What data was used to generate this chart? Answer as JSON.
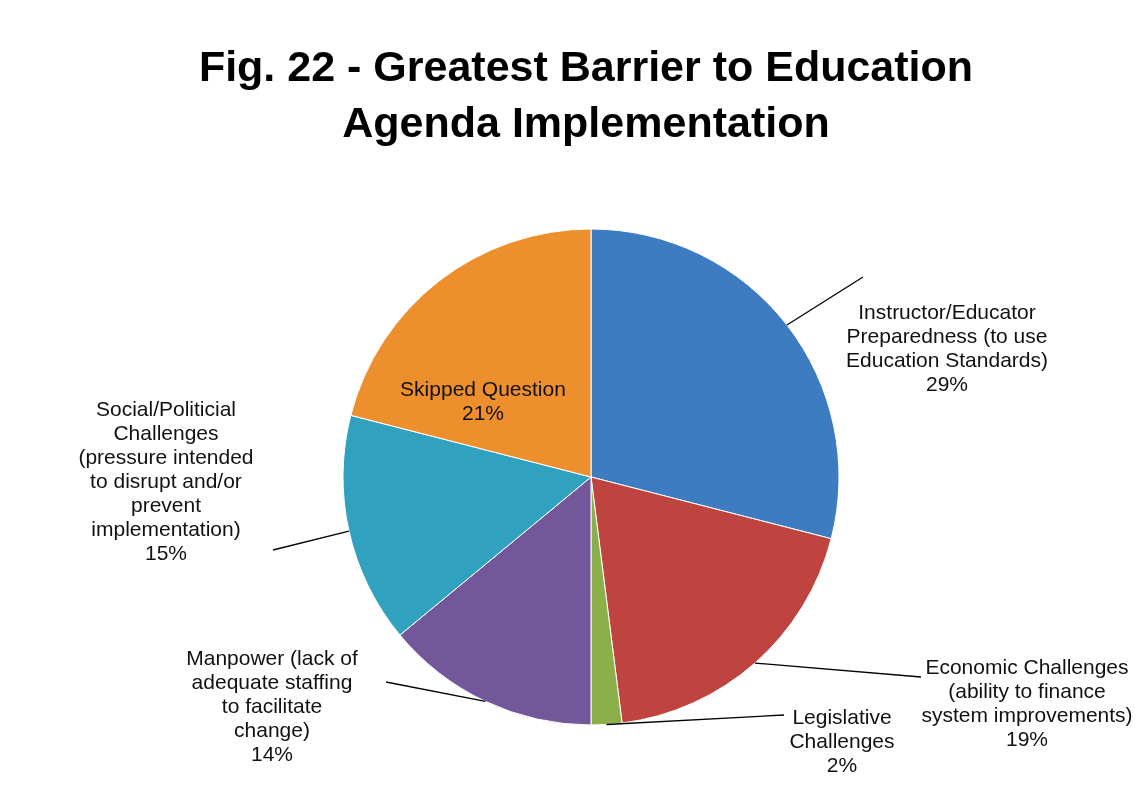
{
  "chart_data": {
    "type": "pie",
    "title": "Fig. 22 - Greatest Barrier to Education Agenda Implementation",
    "categories": [
      "Instructor/Educator Preparedness (to use Education Standards)",
      "Economic Challenges (ability to finance system improvements)",
      "Legislative Challenges",
      "Manpower (lack of adequate staffing to facilitate change)",
      "Social/Politicial Challenges (pressure intended to disrupt and/or prevent implementation)",
      "Skipped Question"
    ],
    "values": [
      29,
      19,
      2,
      14,
      15,
      21
    ],
    "value_labels": [
      "29%",
      "19%",
      "2%",
      "14%",
      "15%",
      "21%"
    ],
    "colors": [
      "#3d7cc0",
      "#bf4440",
      "#8bb04a",
      "#72579a",
      "#30a2bf",
      "#ee8f2e"
    ]
  }
}
